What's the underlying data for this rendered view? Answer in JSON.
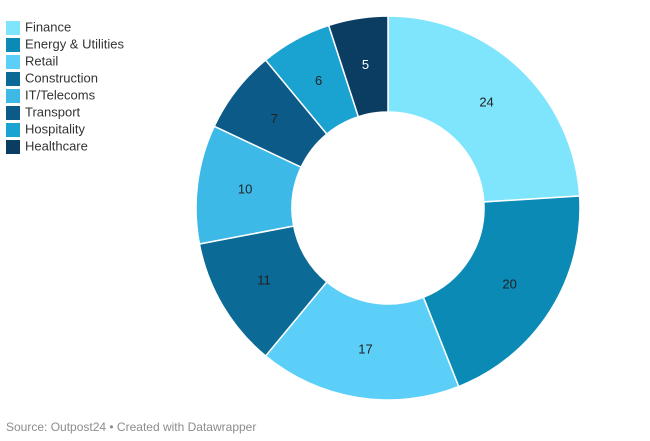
{
  "chart_data": {
    "type": "donut",
    "categories": [
      "Finance",
      "Energy & Utilities",
      "Retail",
      "Construction",
      "IT/Telecoms",
      "Transport",
      "Hospitality",
      "Healthcare"
    ],
    "values": [
      24,
      20,
      17,
      11,
      10,
      7,
      6,
      5
    ],
    "colors": [
      "#7fe5fc",
      "#0a8ab5",
      "#5ccff8",
      "#0c6a96",
      "#3db9e8",
      "#0b5a87",
      "#1aa3d1",
      "#0b3d63"
    ],
    "legend": "top-left",
    "source": "Source: Outpost24 • Created with Datawrapper"
  }
}
